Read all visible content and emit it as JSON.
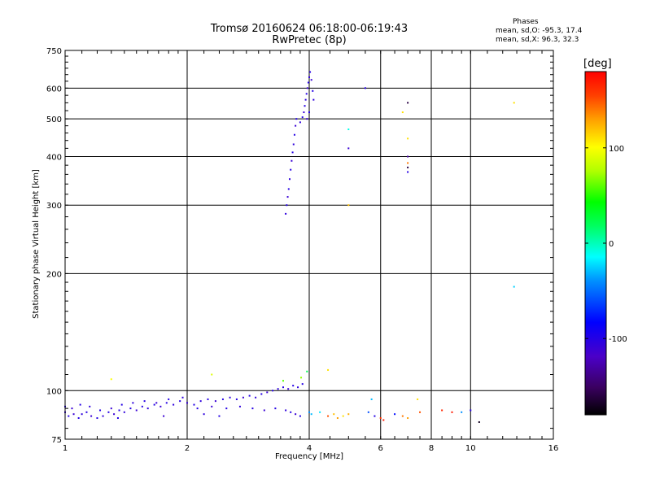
{
  "header": {
    "title_line1": "Tromsø 20160624 06:18:00-06:19:43",
    "title_line2": "RwPretec (8p)"
  },
  "phase_stats": {
    "title": "Phases",
    "o_line": "mean, sd,O: -95.3, 17.4",
    "x_line": "mean, sd,X:  96.3, 32.3"
  },
  "colorbar": {
    "unit": "[deg]",
    "ticks": [
      "100",
      "0",
      "-100"
    ],
    "tick_values": [
      100,
      0,
      -100
    ],
    "range": [
      -180,
      180
    ],
    "colormap": "rainbow (black-purple-blue-cyan-green-yellow-orange-red)"
  },
  "chart_data": {
    "type": "scatter",
    "title": "Tromsø 20160624 06:18:00-06:19:43",
    "subtitle": "RwPretec (8p)",
    "xlabel": "Frequency [MHz]",
    "ylabel": "Stationary phase Virtual Height [km]",
    "xscale": "log2",
    "yscale": "log",
    "xlim": [
      1,
      16
    ],
    "ylim": [
      75,
      750
    ],
    "grid": true,
    "x_tick_labels": [
      "1",
      "2",
      "4",
      "6",
      "8",
      "10",
      "16"
    ],
    "x_tick_values": [
      1,
      2,
      4,
      6,
      8,
      10,
      16
    ],
    "y_tick_labels": [
      "75",
      "100",
      "200",
      "300",
      "400",
      "500",
      "600",
      "750"
    ],
    "y_tick_values": [
      75,
      100,
      200,
      300,
      400,
      500,
      600,
      750
    ],
    "color_encodes": "phase [deg]",
    "series": [
      {
        "points": [
          {
            "x": 1.0,
            "y": 88,
            "c": -105
          },
          {
            "x": 1.02,
            "y": 86,
            "c": -100
          },
          {
            "x": 1.05,
            "y": 87,
            "c": -110
          },
          {
            "x": 1.08,
            "y": 85,
            "c": -100
          },
          {
            "x": 1.1,
            "y": 87,
            "c": -105
          },
          {
            "x": 1.13,
            "y": 88,
            "c": -100
          },
          {
            "x": 1.16,
            "y": 86,
            "c": -110
          },
          {
            "x": 1.2,
            "y": 85,
            "c": -100
          },
          {
            "x": 1.24,
            "y": 86,
            "c": -105
          },
          {
            "x": 1.28,
            "y": 88,
            "c": -100
          },
          {
            "x": 1.32,
            "y": 87,
            "c": -110
          },
          {
            "x": 1.36,
            "y": 89,
            "c": -100
          },
          {
            "x": 1.4,
            "y": 88,
            "c": -105
          },
          {
            "x": 1.45,
            "y": 90,
            "c": -100
          },
          {
            "x": 1.5,
            "y": 89,
            "c": -110
          },
          {
            "x": 1.55,
            "y": 91,
            "c": -100
          },
          {
            "x": 1.6,
            "y": 90,
            "c": -105
          },
          {
            "x": 1.66,
            "y": 92,
            "c": -100
          },
          {
            "x": 1.72,
            "y": 91,
            "c": -110
          },
          {
            "x": 1.78,
            "y": 93,
            "c": -100
          },
          {
            "x": 1.85,
            "y": 92,
            "c": -105
          },
          {
            "x": 1.92,
            "y": 94,
            "c": -100
          },
          {
            "x": 2.0,
            "y": 93,
            "c": -110
          },
          {
            "x": 2.08,
            "y": 92,
            "c": -100
          },
          {
            "x": 2.16,
            "y": 94,
            "c": -105
          },
          {
            "x": 2.25,
            "y": 95,
            "c": -100
          },
          {
            "x": 2.35,
            "y": 94,
            "c": -110
          },
          {
            "x": 2.45,
            "y": 95,
            "c": -100
          },
          {
            "x": 2.55,
            "y": 96,
            "c": -105
          },
          {
            "x": 2.65,
            "y": 95,
            "c": -100
          },
          {
            "x": 2.75,
            "y": 96,
            "c": -110
          },
          {
            "x": 2.85,
            "y": 97,
            "c": -100
          },
          {
            "x": 2.95,
            "y": 96,
            "c": -105
          },
          {
            "x": 3.05,
            "y": 98,
            "c": -100
          },
          {
            "x": 3.15,
            "y": 99,
            "c": -110
          },
          {
            "x": 3.25,
            "y": 100,
            "c": -100
          },
          {
            "x": 3.35,
            "y": 101,
            "c": -105
          },
          {
            "x": 3.45,
            "y": 102,
            "c": -100
          },
          {
            "x": 3.55,
            "y": 101,
            "c": -110
          },
          {
            "x": 3.65,
            "y": 103,
            "c": -100
          },
          {
            "x": 3.75,
            "y": 102,
            "c": -105
          },
          {
            "x": 3.85,
            "y": 104,
            "c": -100
          },
          {
            "x": 1.0,
            "y": 91,
            "c": -100
          },
          {
            "x": 1.04,
            "y": 90,
            "c": -110
          },
          {
            "x": 1.09,
            "y": 92,
            "c": -100
          },
          {
            "x": 1.15,
            "y": 91,
            "c": -105
          },
          {
            "x": 1.22,
            "y": 89,
            "c": -100
          },
          {
            "x": 1.3,
            "y": 90,
            "c": -110
          },
          {
            "x": 1.38,
            "y": 92,
            "c": -100
          },
          {
            "x": 1.47,
            "y": 93,
            "c": -105
          },
          {
            "x": 1.57,
            "y": 94,
            "c": -100
          },
          {
            "x": 1.68,
            "y": 93,
            "c": -110
          },
          {
            "x": 1.8,
            "y": 95,
            "c": -100
          },
          {
            "x": 1.95,
            "y": 96,
            "c": -105
          },
          {
            "x": 2.12,
            "y": 90,
            "c": -100
          },
          {
            "x": 2.3,
            "y": 91,
            "c": -110
          },
          {
            "x": 2.5,
            "y": 90,
            "c": -100
          },
          {
            "x": 2.7,
            "y": 91,
            "c": -105
          },
          {
            "x": 2.9,
            "y": 90,
            "c": -100
          },
          {
            "x": 3.1,
            "y": 89,
            "c": -110
          },
          {
            "x": 3.3,
            "y": 90,
            "c": -100
          },
          {
            "x": 3.5,
            "y": 89,
            "c": -105
          },
          {
            "x": 3.6,
            "y": 88,
            "c": -100
          },
          {
            "x": 3.7,
            "y": 87,
            "c": -110
          },
          {
            "x": 3.8,
            "y": 86,
            "c": -100
          },
          {
            "x": 2.2,
            "y": 87,
            "c": -105
          },
          {
            "x": 2.4,
            "y": 86,
            "c": -100
          },
          {
            "x": 1.75,
            "y": 86,
            "c": -110
          },
          {
            "x": 1.35,
            "y": 85,
            "c": -100
          },
          {
            "x": 3.5,
            "y": 285,
            "c": -105
          },
          {
            "x": 3.52,
            "y": 300,
            "c": -100
          },
          {
            "x": 3.54,
            "y": 315,
            "c": -110
          },
          {
            "x": 3.56,
            "y": 330,
            "c": -100
          },
          {
            "x": 3.58,
            "y": 350,
            "c": -105
          },
          {
            "x": 3.6,
            "y": 370,
            "c": -100
          },
          {
            "x": 3.62,
            "y": 390,
            "c": -110
          },
          {
            "x": 3.64,
            "y": 410,
            "c": -100
          },
          {
            "x": 3.66,
            "y": 430,
            "c": -105
          },
          {
            "x": 3.68,
            "y": 455,
            "c": -100
          },
          {
            "x": 3.7,
            "y": 480,
            "c": -110
          },
          {
            "x": 3.72,
            "y": 500,
            "c": -100
          },
          {
            "x": 3.8,
            "y": 490,
            "c": -105
          },
          {
            "x": 3.85,
            "y": 505,
            "c": -100
          },
          {
            "x": 3.88,
            "y": 520,
            "c": -110
          },
          {
            "x": 3.9,
            "y": 540,
            "c": -100
          },
          {
            "x": 3.92,
            "y": 560,
            "c": -105
          },
          {
            "x": 3.94,
            "y": 580,
            "c": -100
          },
          {
            "x": 3.96,
            "y": 600,
            "c": -110
          },
          {
            "x": 3.98,
            "y": 620,
            "c": -100
          },
          {
            "x": 4.0,
            "y": 640,
            "c": -105
          },
          {
            "x": 4.02,
            "y": 660,
            "c": -100
          },
          {
            "x": 4.05,
            "y": 630,
            "c": -110
          },
          {
            "x": 4.08,
            "y": 590,
            "c": -100
          },
          {
            "x": 4.1,
            "y": 560,
            "c": -105
          },
          {
            "x": 4.0,
            "y": 520,
            "c": -100
          },
          {
            "x": 3.95,
            "y": 500,
            "c": -110
          },
          {
            "x": 4.0,
            "y": 88,
            "c": -40
          },
          {
            "x": 4.05,
            "y": 87,
            "c": -30
          },
          {
            "x": 4.25,
            "y": 88,
            "c": -20
          },
          {
            "x": 4.45,
            "y": 86,
            "c": 150
          },
          {
            "x": 4.6,
            "y": 87,
            "c": 120
          },
          {
            "x": 4.7,
            "y": 85,
            "c": 130
          },
          {
            "x": 4.85,
            "y": 86,
            "c": 110
          },
          {
            "x": 5.0,
            "y": 87,
            "c": 125
          },
          {
            "x": 5.6,
            "y": 88,
            "c": -60
          },
          {
            "x": 5.8,
            "y": 86,
            "c": -100
          },
          {
            "x": 6.0,
            "y": 85,
            "c": 160
          },
          {
            "x": 6.1,
            "y": 84,
            "c": 170
          },
          {
            "x": 6.5,
            "y": 87,
            "c": -80
          },
          {
            "x": 6.8,
            "y": 86,
            "c": 140
          },
          {
            "x": 7.0,
            "y": 85,
            "c": 130
          },
          {
            "x": 7.5,
            "y": 88,
            "c": 150
          },
          {
            "x": 8.5,
            "y": 89,
            "c": 165
          },
          {
            "x": 9.0,
            "y": 88,
            "c": 170
          },
          {
            "x": 9.5,
            "y": 88,
            "c": -40
          },
          {
            "x": 10.0,
            "y": 89,
            "c": -100
          },
          {
            "x": 10.5,
            "y": 83,
            "c": -170
          },
          {
            "x": 5.7,
            "y": 95,
            "c": -30
          },
          {
            "x": 7.4,
            "y": 95,
            "c": 110
          },
          {
            "x": 1.3,
            "y": 107,
            "c": 100
          },
          {
            "x": 2.3,
            "y": 110,
            "c": 90
          },
          {
            "x": 3.45,
            "y": 106,
            "c": 60
          },
          {
            "x": 3.82,
            "y": 108,
            "c": 70
          },
          {
            "x": 3.95,
            "y": 112,
            "c": 20
          },
          {
            "x": 4.45,
            "y": 113,
            "c": 110
          },
          {
            "x": 5.0,
            "y": 470,
            "c": -10
          },
          {
            "x": 5.0,
            "y": 420,
            "c": -110
          },
          {
            "x": 5.0,
            "y": 300,
            "c": 120
          },
          {
            "x": 5.5,
            "y": 600,
            "c": -100
          },
          {
            "x": 6.8,
            "y": 520,
            "c": 110
          },
          {
            "x": 7.0,
            "y": 550,
            "c": -160
          },
          {
            "x": 7.0,
            "y": 445,
            "c": 110
          },
          {
            "x": 7.0,
            "y": 400,
            "c": -130
          },
          {
            "x": 7.0,
            "y": 385,
            "c": 140
          },
          {
            "x": 7.0,
            "y": 375,
            "c": -160
          },
          {
            "x": 7.0,
            "y": 365,
            "c": -100
          },
          {
            "x": 12.8,
            "y": 550,
            "c": 110
          },
          {
            "x": 12.8,
            "y": 185,
            "c": -25
          }
        ]
      }
    ]
  }
}
